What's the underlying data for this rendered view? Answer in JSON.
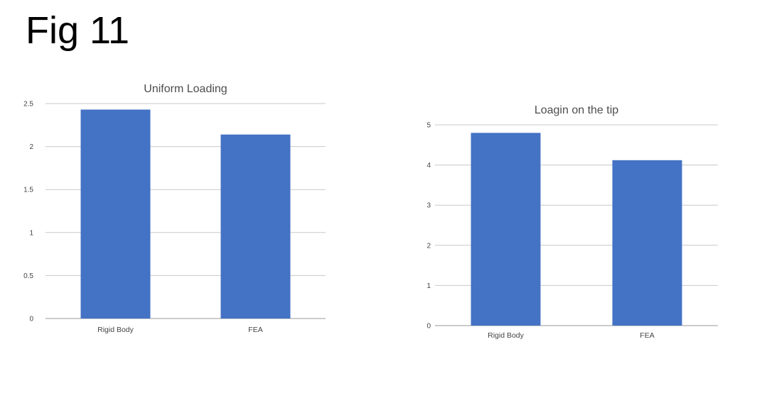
{
  "figure_title": "Fig 11",
  "chart_data": [
    {
      "type": "bar",
      "title": "Uniform Loading",
      "categories": [
        "Rigid Body",
        "FEA"
      ],
      "values": [
        2.43,
        2.14
      ],
      "ylim": [
        0,
        2.5
      ],
      "yticks": [
        "0",
        "0.5",
        "1",
        "1.5",
        "2",
        "2.5"
      ],
      "grid": true,
      "bar_color": "#4472c4",
      "grid_color": "#c8c8c8"
    },
    {
      "type": "bar",
      "title": "Loagin on the tip",
      "categories": [
        "Rigid Body",
        "FEA"
      ],
      "values": [
        4.8,
        4.12
      ],
      "ylim": [
        0,
        5
      ],
      "yticks": [
        "0",
        "1",
        "2",
        "3",
        "4",
        "5"
      ],
      "grid": true,
      "bar_color": "#4472c4",
      "grid_color": "#c8c8c8"
    }
  ]
}
